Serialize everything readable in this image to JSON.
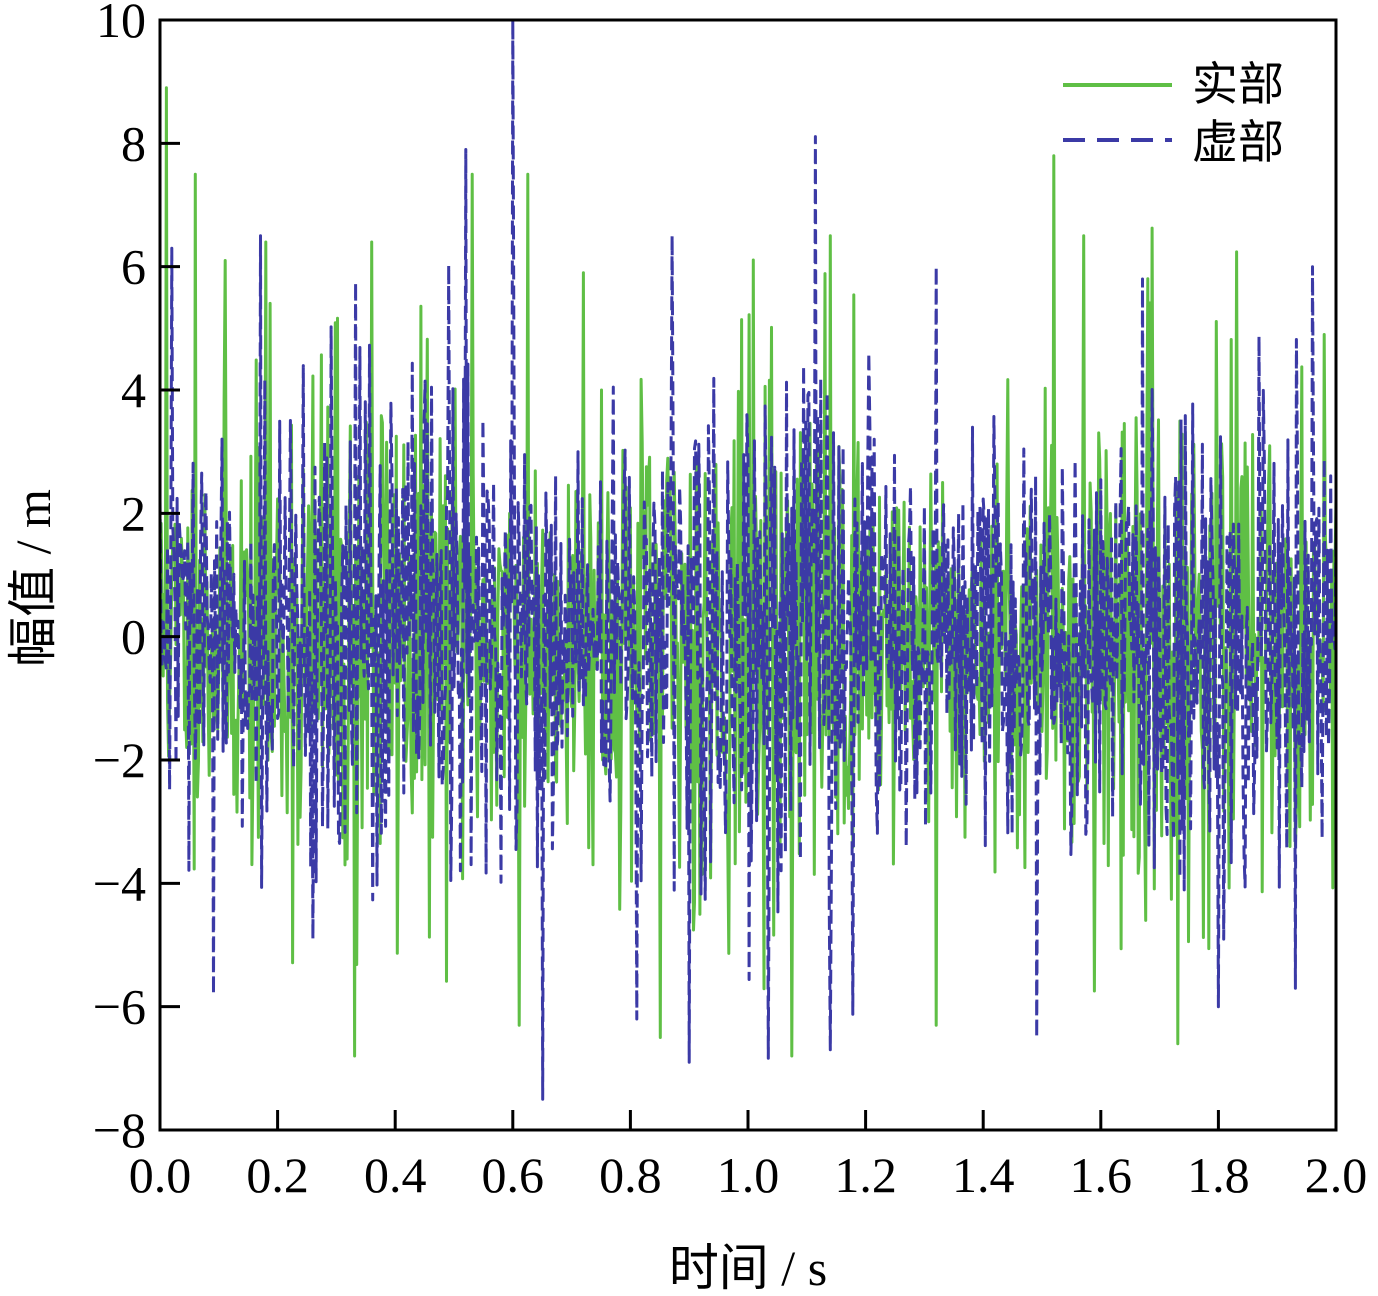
{
  "chart_data": {
    "type": "line",
    "title": "",
    "xlabel": "时间 / s",
    "ylabel": "幅值 / m",
    "xlim": [
      0,
      2.0
    ],
    "ylim": [
      -8,
      10
    ],
    "xticks": [
      "0.0",
      "0.2",
      "0.4",
      "0.6",
      "0.8",
      "1.0",
      "1.2",
      "1.4",
      "1.6",
      "1.8",
      "2.0"
    ],
    "xtick_values": [
      0,
      0.2,
      0.4,
      0.6,
      0.8,
      1.0,
      1.2,
      1.4,
      1.6,
      1.8,
      2.0
    ],
    "yticks": [
      "10",
      "8",
      "6",
      "4",
      "2",
      "0",
      "−2",
      "−4",
      "−6",
      "−8"
    ],
    "ytick_values": [
      10,
      8,
      6,
      4,
      2,
      0,
      -2,
      -4,
      -6,
      -8
    ],
    "grid": false,
    "legend_position": "top-right",
    "series": [
      {
        "name": "实部",
        "style": "solid",
        "color": "#5fbf45",
        "peaks": [
          [
            0.01,
            8.9
          ],
          [
            0.06,
            7.5
          ],
          [
            0.11,
            6.1
          ],
          [
            0.18,
            6.4
          ],
          [
            0.33,
            -6.8
          ],
          [
            0.36,
            6.4
          ],
          [
            0.53,
            7.5
          ],
          [
            0.61,
            -6.3
          ],
          [
            0.625,
            7.5
          ],
          [
            0.72,
            5.9
          ],
          [
            0.75,
            4.0
          ],
          [
            0.85,
            -6.5
          ],
          [
            1.14,
            6.5
          ],
          [
            1.32,
            -6.3
          ],
          [
            1.52,
            7.8
          ],
          [
            1.57,
            6.5
          ],
          [
            1.73,
            -6.6
          ],
          [
            1.98,
            4.9
          ]
        ],
        "range": [
          -6.8,
          8.9
        ]
      },
      {
        "name": "虚部",
        "style": "dashed",
        "color": "#3b3aa6",
        "peaks": [
          [
            0.02,
            6.3
          ],
          [
            0.09,
            -5.8
          ],
          [
            0.17,
            6.5
          ],
          [
            0.52,
            7.9
          ],
          [
            0.6,
            10.0
          ],
          [
            0.65,
            -7.5
          ],
          [
            0.81,
            -6.2
          ],
          [
            0.87,
            6.5
          ],
          [
            0.9,
            -6.9
          ],
          [
            1.14,
            -6.7
          ],
          [
            1.32,
            6.0
          ],
          [
            1.49,
            -6.5
          ],
          [
            1.67,
            5.8
          ],
          [
            1.8,
            -6.0
          ],
          [
            1.96,
            6.0
          ],
          [
            1.93,
            -5.7
          ]
        ],
        "range": [
          -7.5,
          10.0
        ]
      }
    ]
  },
  "colors": {
    "real": "#5fbf45",
    "imag": "#3b3aa6",
    "axis": "#000000"
  }
}
